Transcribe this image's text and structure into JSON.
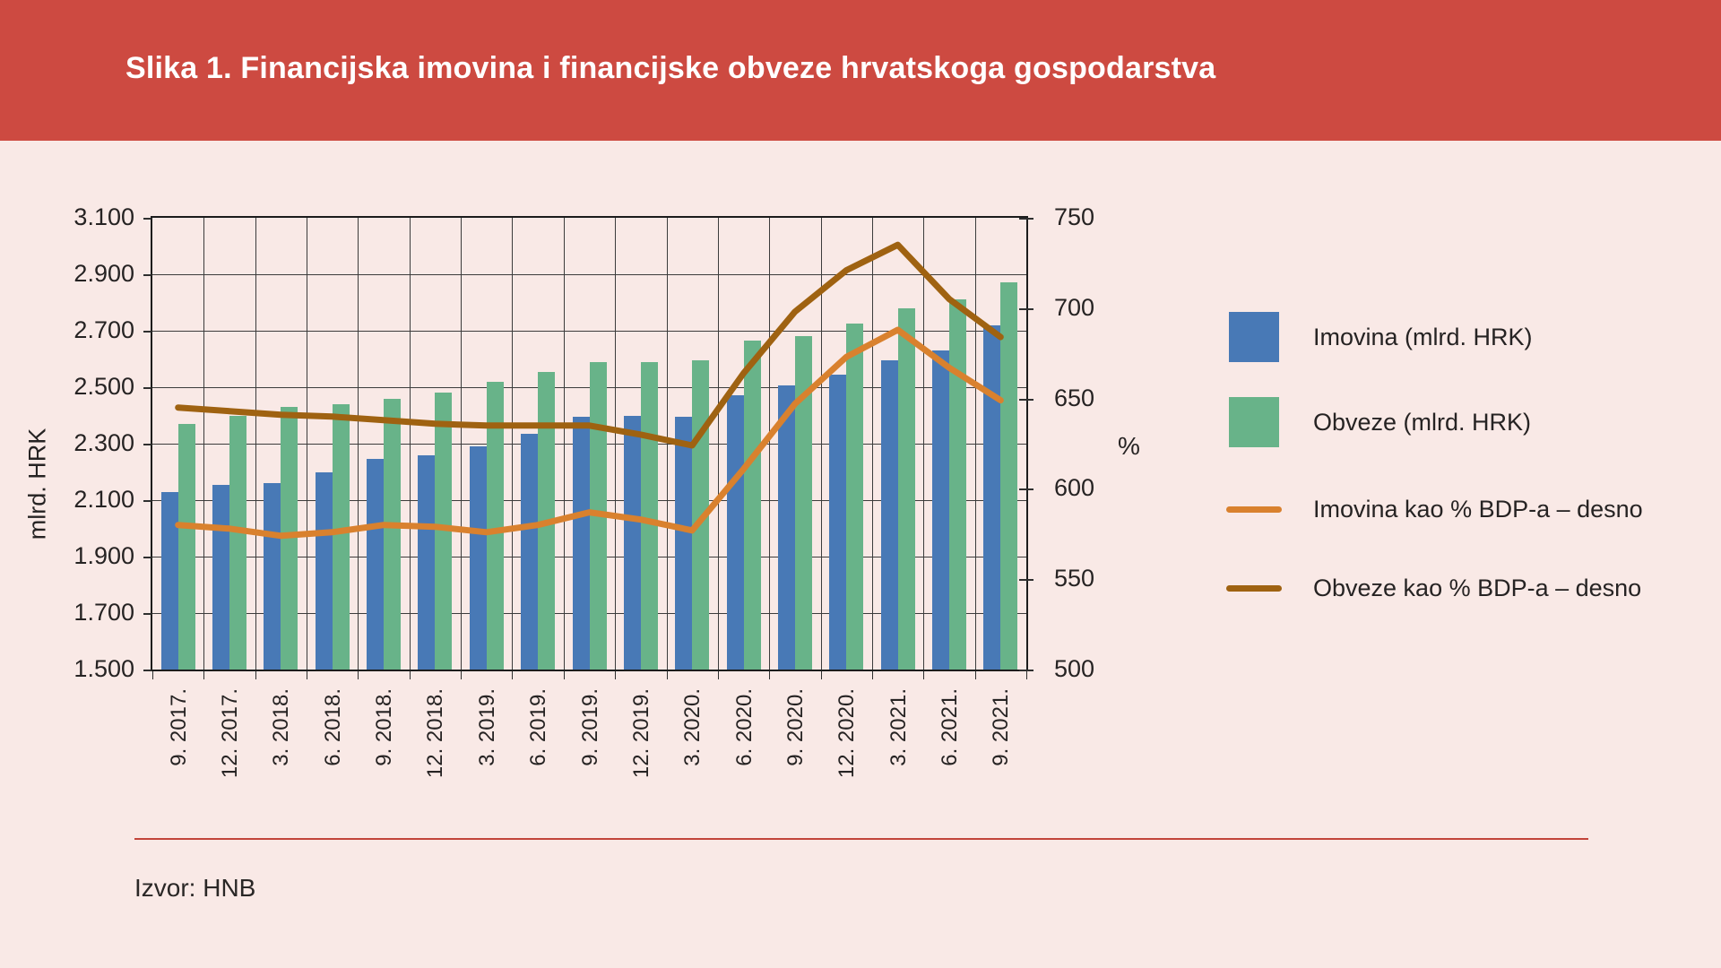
{
  "banner": {
    "title": "Slika 1. Financijska imovina i financijske obveze hrvatskoga gospodarstva",
    "bg_color": "#cd4a41"
  },
  "source": "Izvor: HNB",
  "legend": {
    "items": [
      {
        "label": "Imovina (mlrd. HRK)",
        "swatch": "square",
        "color": "#4879b6"
      },
      {
        "label": "Obveze (mlrd. HRK)",
        "swatch": "square",
        "color": "#68b389"
      },
      {
        "label": "Imovina kao % BDP-a – desno",
        "swatch": "line",
        "color": "#d9812e"
      },
      {
        "label": "Obveze kao % BDP-a – desno",
        "swatch": "line",
        "color": "#9f6211"
      }
    ]
  },
  "chart_data": {
    "type": "bar",
    "subtype": "dual-axis bar + line",
    "grid": "on",
    "legend_position": "right",
    "categories": [
      "9. 2017.",
      "12. 2017.",
      "3. 2018.",
      "6. 2018.",
      "9. 2018.",
      "12. 2018.",
      "3. 2019.",
      "6. 2019.",
      "9. 2019.",
      "12. 2019.",
      "3. 2020.",
      "6. 2020.",
      "9. 2020.",
      "12. 2020.",
      "3. 2021.",
      "6. 2021.",
      "9. 2021."
    ],
    "left_axis": {
      "label": "mlrd. HRK",
      "min": 1500,
      "max": 3100,
      "step": 200,
      "tick_labels": [
        "3.100",
        "2.900",
        "2.700",
        "2.500",
        "2.300",
        "2.100",
        "1.900",
        "1.700",
        "1.500"
      ]
    },
    "right_axis": {
      "label": "%",
      "min": 500,
      "max": 750,
      "step": 50,
      "tick_labels": [
        "750",
        "700",
        "650",
        "600",
        "550",
        "500"
      ]
    },
    "series": [
      {
        "name": "Imovina (mlrd. HRK)",
        "type": "bar",
        "axis": "left",
        "color": "#4879b6",
        "values": [
          2130,
          2155,
          2160,
          2200,
          2245,
          2260,
          2290,
          2335,
          2395,
          2400,
          2395,
          2470,
          2505,
          2545,
          2595,
          2630,
          2720
        ]
      },
      {
        "name": "Obveze (mlrd. HRK)",
        "type": "bar",
        "axis": "left",
        "color": "#68b389",
        "values": [
          2370,
          2400,
          2430,
          2440,
          2460,
          2480,
          2520,
          2555,
          2590,
          2590,
          2595,
          2665,
          2680,
          2725,
          2780,
          2810,
          2870
        ]
      },
      {
        "name": "Imovina kao % BDP-a – desno",
        "type": "line",
        "axis": "right",
        "color": "#d9812e",
        "values": [
          580,
          578,
          574,
          576,
          580,
          579,
          576,
          580,
          587,
          583,
          577,
          611,
          647,
          673,
          688,
          667,
          649
        ]
      },
      {
        "name": "Obveze kao % BDP-a – desno",
        "type": "line",
        "axis": "right",
        "color": "#9f6211",
        "values": [
          645,
          643,
          641,
          640,
          638,
          636,
          635,
          635,
          635,
          630,
          624,
          664,
          698,
          721,
          735,
          705,
          684
        ]
      }
    ]
  }
}
